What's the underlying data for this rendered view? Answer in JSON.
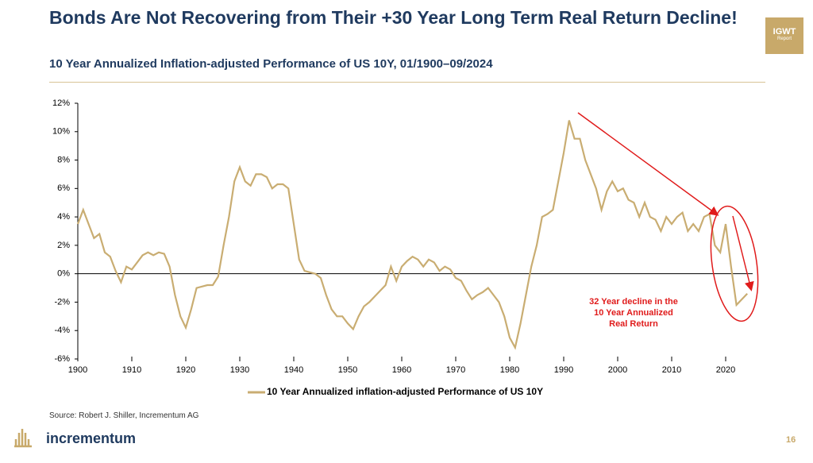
{
  "header": {
    "title": "Bonds Are Not Recovering from Their +30 Year Long Term Real Return Decline!",
    "subtitle": "10 Year Annualized Inflation-adjusted Performance of US 10Y, 01/1900–09/2024",
    "badge": [
      "IGWT",
      "Report"
    ]
  },
  "chart_data": {
    "type": "line",
    "x": [
      1900,
      1901,
      1902,
      1903,
      1904,
      1905,
      1906,
      1907,
      1908,
      1909,
      1910,
      1911,
      1912,
      1913,
      1914,
      1915,
      1916,
      1917,
      1918,
      1919,
      1920,
      1921,
      1922,
      1923,
      1924,
      1925,
      1926,
      1927,
      1928,
      1929,
      1930,
      1931,
      1932,
      1933,
      1934,
      1935,
      1936,
      1937,
      1938,
      1939,
      1940,
      1941,
      1942,
      1943,
      1944,
      1945,
      1946,
      1947,
      1948,
      1949,
      1950,
      1951,
      1952,
      1953,
      1954,
      1955,
      1956,
      1957,
      1958,
      1959,
      1960,
      1961,
      1962,
      1963,
      1964,
      1965,
      1966,
      1967,
      1968,
      1969,
      1970,
      1971,
      1972,
      1973,
      1974,
      1975,
      1976,
      1977,
      1978,
      1979,
      1980,
      1981,
      1982,
      1983,
      1984,
      1985,
      1986,
      1987,
      1988,
      1989,
      1990,
      1991,
      1992,
      1993,
      1994,
      1995,
      1996,
      1997,
      1998,
      1999,
      2000,
      2001,
      2002,
      2003,
      2004,
      2005,
      2006,
      2007,
      2008,
      2009,
      2010,
      2011,
      2012,
      2013,
      2014,
      2015,
      2016,
      2017,
      2018,
      2019,
      2020,
      2021,
      2022,
      2023,
      2024
    ],
    "series": [
      {
        "name": "10 Year Annualized inflation-adjusted Performance of US 10Y",
        "color": "#c9ad72",
        "values": [
          3.5,
          4.5,
          3.5,
          2.5,
          2.8,
          1.5,
          1.2,
          0.2,
          -0.6,
          0.5,
          0.3,
          0.8,
          1.3,
          1.5,
          1.3,
          1.5,
          1.4,
          0.5,
          -1.5,
          -3.0,
          -3.8,
          -2.5,
          -1.0,
          -0.9,
          -0.8,
          -0.8,
          -0.2,
          2.0,
          4.0,
          6.5,
          7.5,
          6.5,
          6.2,
          7.0,
          7.0,
          6.8,
          6.0,
          6.3,
          6.3,
          6.0,
          3.5,
          1.0,
          0.2,
          0.1,
          0,
          -0.3,
          -1.5,
          -2.5,
          -3.0,
          -3.0,
          -3.5,
          -3.9,
          -3.0,
          -2.3,
          -2.0,
          -1.6,
          -1.2,
          -0.8,
          0.5,
          -0.5,
          0.5,
          0.9,
          1.2,
          1.0,
          0.5,
          1.0,
          0.8,
          0.2,
          0.5,
          0.3,
          -0.3,
          -0.5,
          -1.2,
          -1.8,
          -1.5,
          -1.3,
          -1.0,
          -1.5,
          -2.0,
          -3.0,
          -4.5,
          -5.2,
          -3.5,
          -1.5,
          0.5,
          2.0,
          4.0,
          4.2,
          4.5,
          6.5,
          8.5,
          10.8,
          9.5,
          9.5,
          8.0,
          7.0,
          6.0,
          4.5,
          5.8,
          6.5,
          5.8,
          6.0,
          5.2,
          5.0,
          4.0,
          5.0,
          4.0,
          3.8,
          3.0,
          4.0,
          3.5,
          4.0,
          4.3,
          3.0,
          3.5,
          3.0,
          4.0,
          4.2,
          2.0,
          1.5,
          3.5,
          0.5,
          -2.2,
          -1.8,
          -1.4
        ]
      }
    ],
    "xlim": [
      1900,
      2025
    ],
    "xticks": [
      1900,
      1910,
      1920,
      1930,
      1940,
      1950,
      1960,
      1970,
      1980,
      1990,
      2000,
      2010,
      2020
    ],
    "ylim": [
      -6,
      12
    ],
    "yticks": [
      {
        "value": -6,
        "label": "-6%"
      },
      {
        "value": -4,
        "label": "-4%"
      },
      {
        "value": -2,
        "label": "-2%"
      },
      {
        "value": 0,
        "label": "0%"
      },
      {
        "value": 2,
        "label": "2%"
      },
      {
        "value": 4,
        "label": "4%"
      },
      {
        "value": 6,
        "label": "6%"
      },
      {
        "value": 8,
        "label": "8%"
      },
      {
        "value": 10,
        "label": "10%"
      },
      {
        "value": 12,
        "label": "12%"
      }
    ],
    "annotation": [
      "32 Year decline in the",
      "10 Year Annualized",
      "Real Return"
    ],
    "legend": "bottom"
  },
  "footer": {
    "source": "Source: Robert J. Shiller, Incrementum AG",
    "brand": "incrementum",
    "page": "16"
  }
}
